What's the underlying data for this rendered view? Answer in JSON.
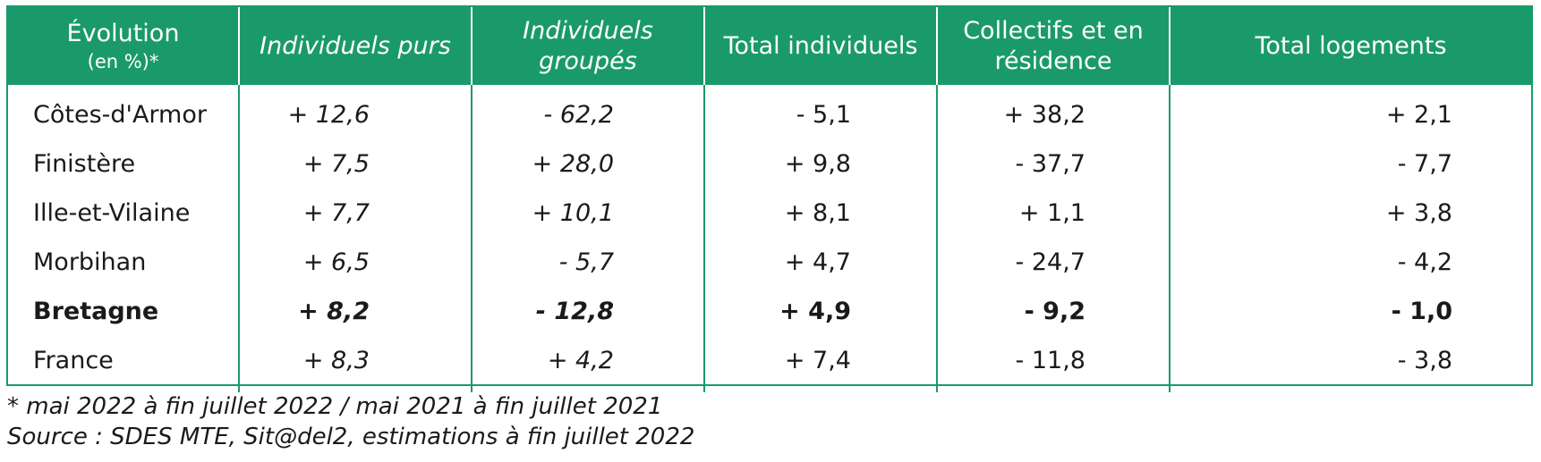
{
  "chart_data": {
    "type": "table",
    "columns": [
      {
        "label": "Évolution",
        "sublabel": "(en %)*"
      },
      {
        "label": "Individuels purs"
      },
      {
        "label": "Individuels groupés"
      },
      {
        "label": "Total individuels"
      },
      {
        "label": "Collectifs et en résidence"
      },
      {
        "label": "Total logements"
      }
    ],
    "rows": [
      {
        "label": "Côtes-d'Armor",
        "values": [
          "+ 12,6",
          "- 62,2",
          "- 5,1",
          "+ 38,2",
          "+ 2,1"
        ],
        "bold": false
      },
      {
        "label": "Finistère",
        "values": [
          "+ 7,5",
          "+ 28,0",
          "+ 9,8",
          "- 37,7",
          "- 7,7"
        ],
        "bold": false
      },
      {
        "label": "Ille-et-Vilaine",
        "values": [
          "+ 7,7",
          "+ 10,1",
          "+ 8,1",
          "+ 1,1",
          "+ 3,8"
        ],
        "bold": false
      },
      {
        "label": "Morbihan",
        "values": [
          "+ 6,5",
          "- 5,7",
          "+ 4,7",
          "- 24,7",
          "- 4,2"
        ],
        "bold": false
      },
      {
        "label": "Bretagne",
        "values": [
          "+ 8,2",
          "- 12,8",
          "+ 4,9",
          "- 9,2",
          "- 1,0"
        ],
        "bold": true
      },
      {
        "label": "France",
        "values": [
          "+ 8,3",
          "+ 4,2",
          "+ 7,4",
          "- 11,8",
          "- 3,8"
        ],
        "bold": false
      }
    ]
  },
  "notes": {
    "period": "* mai 2022 à fin juillet 2022 /  mai 2021 à fin juillet 2021",
    "source": "Source : SDES MTE, Sit@del2, estimations à fin juillet 2022"
  },
  "colors": {
    "header_bg": "#1a9a6a",
    "header_text": "#ffffff",
    "border": "#1a9a6a"
  }
}
